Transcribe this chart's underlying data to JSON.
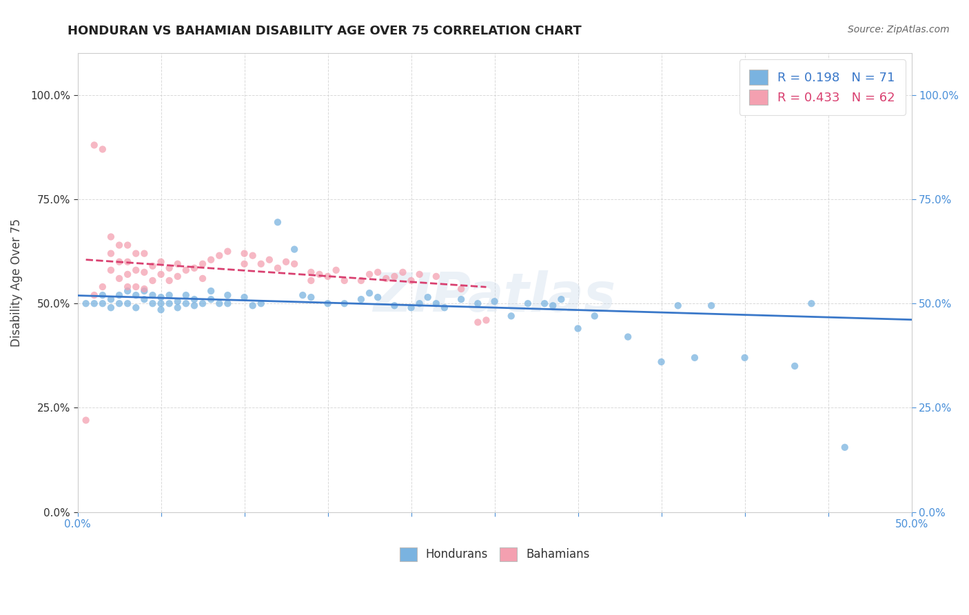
{
  "title": "HONDURAN VS BAHAMIAN DISABILITY AGE OVER 75 CORRELATION CHART",
  "source": "Source: ZipAtlas.com",
  "ylabel": "Disability Age Over 75",
  "legend_hondurans": "Hondurans",
  "legend_bahamians": "Bahamians",
  "r_hondurans": 0.198,
  "n_hondurans": 71,
  "r_bahamians": 0.433,
  "n_bahamians": 62,
  "xmin": 0.0,
  "xmax": 0.5,
  "ymin": 0.0,
  "ymax": 1.1,
  "color_hondurans": "#7ab3e0",
  "color_bahamians": "#f4a0b0",
  "color_line_hondurans": "#3a78c9",
  "color_line_bahamians": "#d94070",
  "color_grid": "#d0d0d0",
  "watermark": "ZIPatlas",
  "hondurans_x": [
    0.005,
    0.01,
    0.015,
    0.015,
    0.02,
    0.02,
    0.025,
    0.025,
    0.03,
    0.03,
    0.035,
    0.035,
    0.04,
    0.04,
    0.045,
    0.045,
    0.05,
    0.05,
    0.05,
    0.055,
    0.055,
    0.06,
    0.06,
    0.065,
    0.065,
    0.07,
    0.07,
    0.075,
    0.08,
    0.08,
    0.085,
    0.09,
    0.09,
    0.1,
    0.105,
    0.11,
    0.12,
    0.13,
    0.135,
    0.14,
    0.15,
    0.16,
    0.17,
    0.175,
    0.18,
    0.19,
    0.2,
    0.205,
    0.21,
    0.215,
    0.22,
    0.23,
    0.24,
    0.25,
    0.26,
    0.27,
    0.28,
    0.285,
    0.29,
    0.3,
    0.31,
    0.33,
    0.35,
    0.36,
    0.37,
    0.38,
    0.4,
    0.43,
    0.44,
    0.46,
    0.48
  ],
  "hondurans_y": [
    0.5,
    0.5,
    0.52,
    0.5,
    0.51,
    0.49,
    0.52,
    0.5,
    0.53,
    0.5,
    0.52,
    0.49,
    0.51,
    0.53,
    0.5,
    0.52,
    0.515,
    0.5,
    0.485,
    0.5,
    0.52,
    0.505,
    0.49,
    0.52,
    0.5,
    0.51,
    0.495,
    0.5,
    0.51,
    0.53,
    0.5,
    0.52,
    0.5,
    0.515,
    0.495,
    0.5,
    0.695,
    0.63,
    0.52,
    0.515,
    0.5,
    0.5,
    0.51,
    0.525,
    0.515,
    0.495,
    0.49,
    0.5,
    0.515,
    0.5,
    0.49,
    0.51,
    0.5,
    0.505,
    0.47,
    0.5,
    0.5,
    0.495,
    0.51,
    0.44,
    0.47,
    0.42,
    0.36,
    0.495,
    0.37,
    0.495,
    0.37,
    0.35,
    0.5,
    0.155,
    1.0
  ],
  "bahamians_x": [
    0.005,
    0.01,
    0.01,
    0.015,
    0.015,
    0.02,
    0.02,
    0.02,
    0.025,
    0.025,
    0.025,
    0.03,
    0.03,
    0.03,
    0.03,
    0.035,
    0.035,
    0.035,
    0.04,
    0.04,
    0.04,
    0.045,
    0.045,
    0.05,
    0.05,
    0.055,
    0.055,
    0.06,
    0.06,
    0.065,
    0.07,
    0.075,
    0.075,
    0.08,
    0.085,
    0.09,
    0.1,
    0.1,
    0.105,
    0.11,
    0.115,
    0.12,
    0.125,
    0.13,
    0.14,
    0.14,
    0.145,
    0.15,
    0.155,
    0.16,
    0.17,
    0.175,
    0.18,
    0.185,
    0.19,
    0.195,
    0.2,
    0.205,
    0.215,
    0.23,
    0.24,
    0.245
  ],
  "bahamians_y": [
    0.22,
    0.88,
    0.52,
    0.87,
    0.54,
    0.66,
    0.62,
    0.58,
    0.64,
    0.6,
    0.56,
    0.64,
    0.6,
    0.57,
    0.54,
    0.62,
    0.58,
    0.54,
    0.62,
    0.575,
    0.535,
    0.59,
    0.555,
    0.6,
    0.57,
    0.585,
    0.555,
    0.595,
    0.565,
    0.58,
    0.585,
    0.595,
    0.56,
    0.605,
    0.615,
    0.625,
    0.62,
    0.595,
    0.615,
    0.595,
    0.605,
    0.585,
    0.6,
    0.595,
    0.575,
    0.555,
    0.57,
    0.565,
    0.58,
    0.555,
    0.555,
    0.57,
    0.575,
    0.56,
    0.565,
    0.575,
    0.555,
    0.57,
    0.565,
    0.535,
    0.455,
    0.46
  ]
}
